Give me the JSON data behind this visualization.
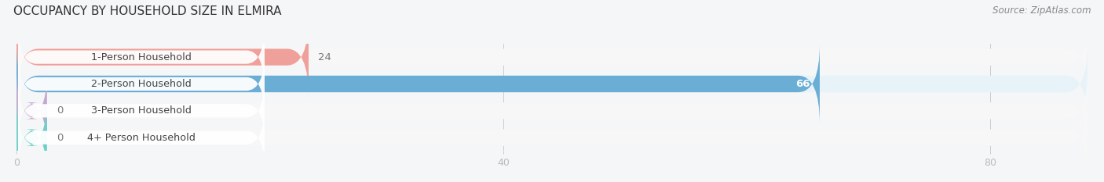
{
  "title": "OCCUPANCY BY HOUSEHOLD SIZE IN ELMIRA",
  "source": "Source: ZipAtlas.com",
  "categories": [
    "1-Person Household",
    "2-Person Household",
    "3-Person Household",
    "4+ Person Household"
  ],
  "values": [
    24,
    66,
    0,
    0
  ],
  "bar_colors": [
    "#f0a09a",
    "#6aadd5",
    "#c4a8d0",
    "#6ecfc9"
  ],
  "xlim": [
    0,
    88
  ],
  "xticks": [
    0,
    40,
    80
  ],
  "bar_height": 0.62,
  "row_bg_even": "#f0f4f8",
  "row_bg_odd": "#ffffff",
  "background_color": "#f5f6f7"
}
